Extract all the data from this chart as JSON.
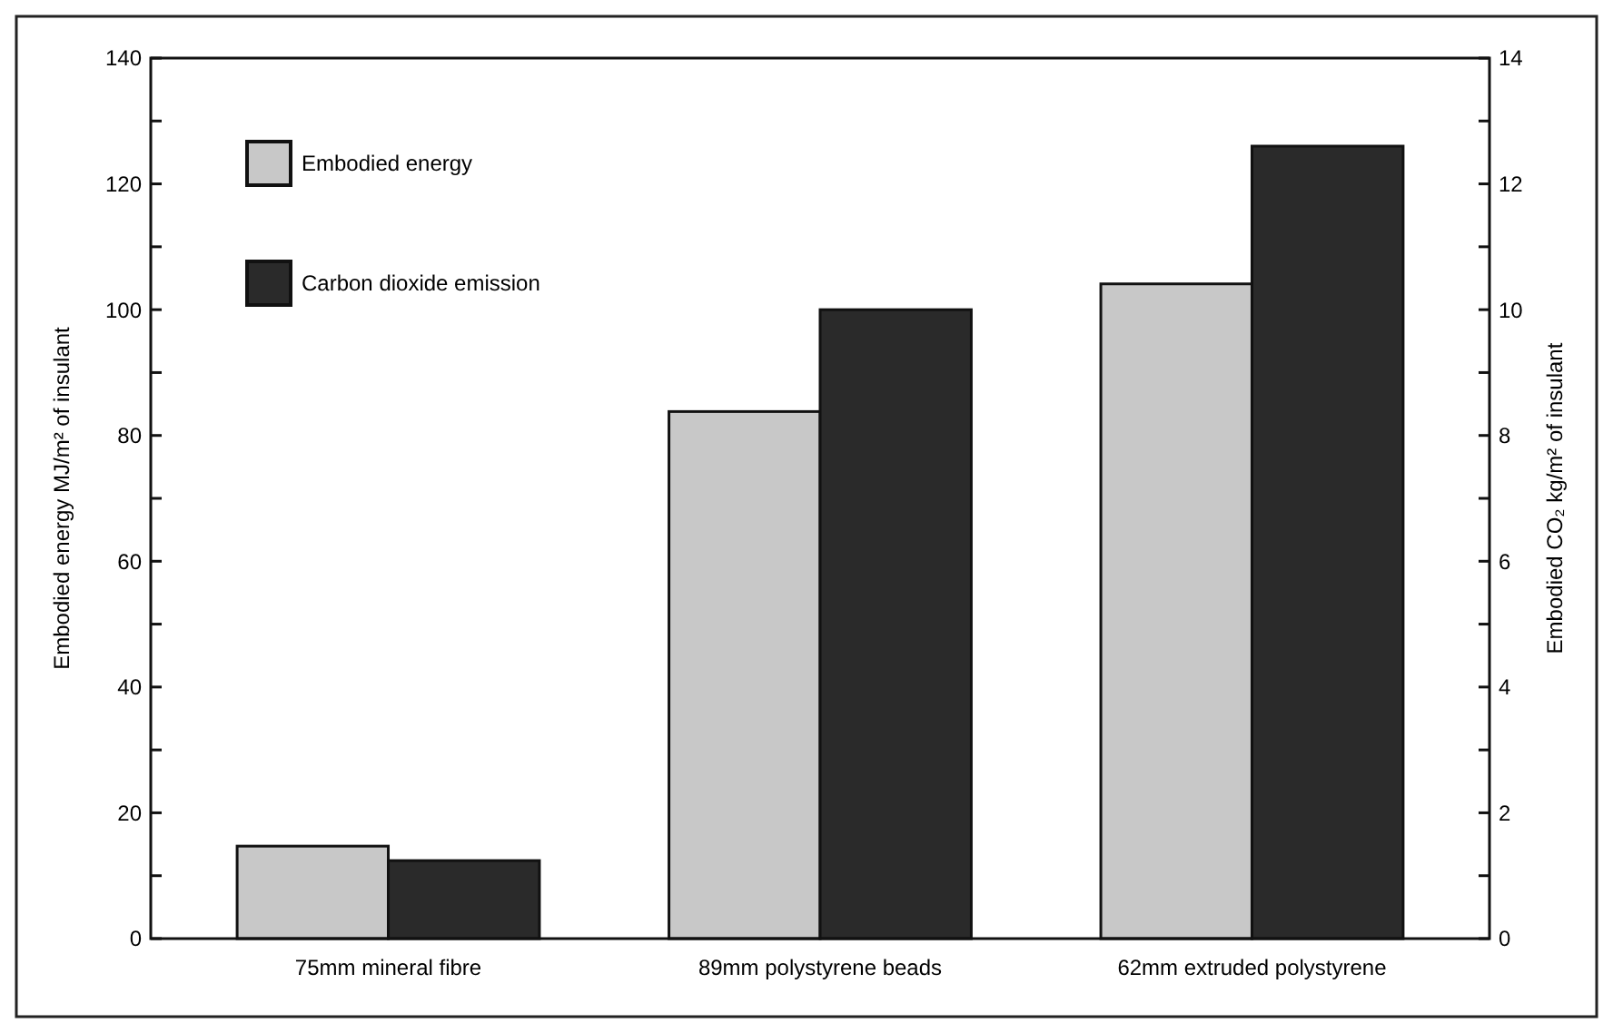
{
  "chart_data": {
    "type": "bar",
    "categories": [
      "75mm mineral fibre",
      "89mm polystyrene beads",
      "62mm extruded polystyrene"
    ],
    "series": [
      {
        "name": "Embodied energy",
        "color": "#c8c8c8",
        "values": [
          14.7,
          83.8,
          104.1
        ]
      },
      {
        "name": "Carbon dioxide emission",
        "color": "#2a2a2a",
        "values": [
          1.24,
          10.0,
          12.6
        ],
        "axis": "y2"
      }
    ],
    "ylabel": "Embodied energy MJ/m² of insulant",
    "y2label": "Embodied CO₂ kg/m² of insulant",
    "ylim": [
      0,
      140
    ],
    "yticks": [
      0,
      {
        "value": 10,
        "label": null
      },
      20,
      {
        "value": 30,
        "label": null
      },
      40,
      {
        "value": 50,
        "label": null
      },
      60,
      {
        "value": 70,
        "label": null
      },
      80,
      {
        "value": 90,
        "label": null
      },
      100,
      {
        "value": 110,
        "label": null
      },
      120,
      {
        "value": 130,
        "label": null
      },
      140
    ],
    "y2lim": [
      0,
      14
    ],
    "y2ticks": [
      0,
      {
        "value": 1,
        "label": null
      },
      2,
      {
        "value": 3,
        "label": null
      },
      4,
      {
        "value": 5,
        "label": null
      },
      6,
      {
        "value": 7,
        "label": null
      },
      8,
      {
        "value": 9,
        "label": null
      },
      10,
      {
        "value": 11,
        "label": null
      },
      12,
      {
        "value": 13,
        "label": null
      },
      14
    ],
    "legend": "top left",
    "grid": false
  }
}
